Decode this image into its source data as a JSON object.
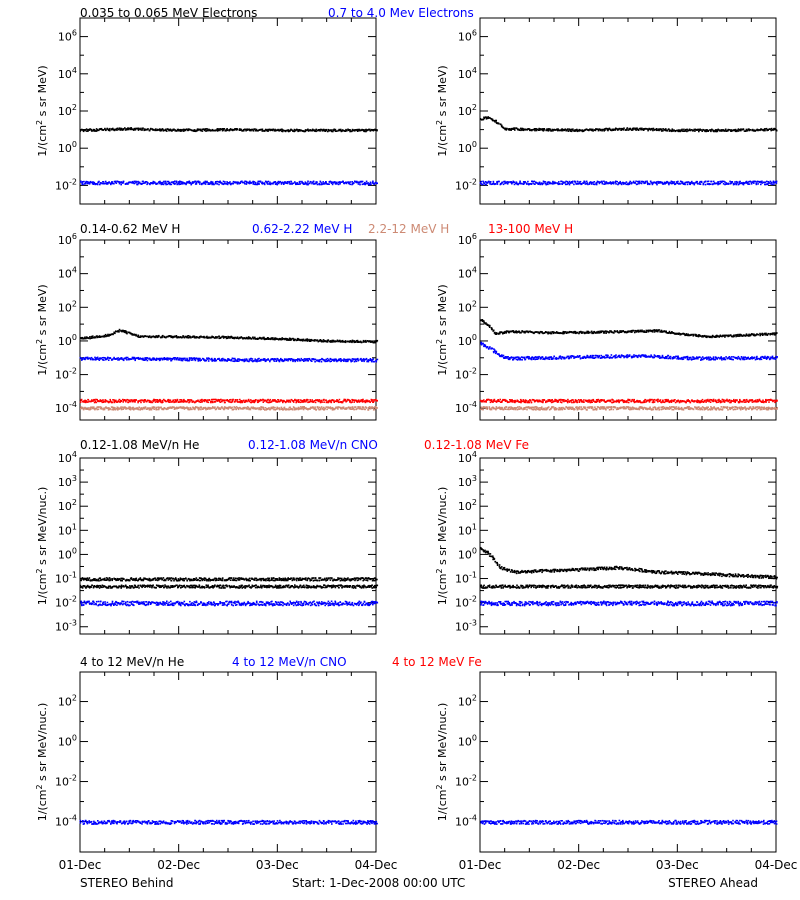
{
  "footer": {
    "left": "STEREO Behind",
    "center": "Start:  1-Dec-2008 00:00 UTC",
    "right": "STEREO Ahead"
  },
  "colors": {
    "black": "#000000",
    "blue": "#0000ff",
    "red": "#ff0000",
    "salmon": "#cd8a74"
  },
  "chart_data": [
    {
      "type": "scatter",
      "log_y": true,
      "ylim": [
        0.001,
        10000000
      ],
      "yticks": [
        "10^-2",
        "10^0",
        "10^2",
        "10^4",
        "10^6"
      ],
      "ylabel": "1/(cm^2 s sr MeV)",
      "xlim": [
        0,
        3
      ],
      "xticks": [
        "01-Dec",
        "02-Dec",
        "03-Dec",
        "04-Dec"
      ],
      "headers": [
        {
          "text": "0.035 to 0.065 MeV Electrons",
          "color": "#000000"
        },
        {
          "text": "0.7 to 4.0 Mev Electrons",
          "color": "#0000ff"
        }
      ],
      "series": [
        {
          "color": "#000000",
          "points": [
            [
              0,
              10
            ],
            [
              0.5,
              12
            ],
            [
              1,
              10
            ],
            [
              1.5,
              11
            ],
            [
              2,
              10
            ],
            [
              2.5,
              10
            ],
            [
              3,
              10
            ]
          ]
        },
        {
          "color": "#0000ff",
          "points": [
            [
              0,
              0.015
            ],
            [
              1,
              0.015
            ],
            [
              2,
              0.015
            ],
            [
              3,
              0.015
            ]
          ]
        }
      ]
    },
    {
      "type": "scatter",
      "log_y": true,
      "ylim": [
        0.001,
        10000000
      ],
      "yticks": [
        "10^-2",
        "10^0",
        "10^2",
        "10^4",
        "10^6"
      ],
      "ylabel": "1/(cm^2 s sr MeV)",
      "xlim": [
        0,
        3
      ],
      "xticks": [
        "01-Dec",
        "02-Dec",
        "03-Dec",
        "04-Dec"
      ],
      "series": [
        {
          "color": "#000000",
          "points": [
            [
              0,
              40
            ],
            [
              0.08,
              50
            ],
            [
              0.15,
              30
            ],
            [
              0.25,
              12
            ],
            [
              1,
              10
            ],
            [
              1.5,
              12
            ],
            [
              2,
              10
            ],
            [
              2.5,
              10
            ],
            [
              3,
              11
            ]
          ]
        },
        {
          "color": "#0000ff",
          "points": [
            [
              0,
              0.015
            ],
            [
              1,
              0.015
            ],
            [
              2,
              0.015
            ],
            [
              3,
              0.015
            ]
          ]
        }
      ]
    },
    {
      "type": "scatter",
      "log_y": true,
      "ylim": [
        2e-05,
        1000000
      ],
      "yticks": [
        "10^-4",
        "10^-2",
        "10^0",
        "10^2",
        "10^4",
        "10^6"
      ],
      "ylabel": "1/(cm^2 s sr MeV)",
      "xlim": [
        0,
        3
      ],
      "xticks": [
        "01-Dec",
        "02-Dec",
        "03-Dec",
        "04-Dec"
      ],
      "headers": [
        {
          "text": "0.14-0.62 MeV H",
          "color": "#000000"
        },
        {
          "text": "0.62-2.22 MeV H",
          "color": "#0000ff"
        },
        {
          "text": "2.2-12 MeV H",
          "color": "#cd8a74"
        },
        {
          "text": "13-100 MeV H",
          "color": "#ff0000"
        }
      ],
      "series": [
        {
          "color": "#000000",
          "points": [
            [
              0,
              1.5
            ],
            [
              0.3,
              2.5
            ],
            [
              0.4,
              5
            ],
            [
              0.5,
              3
            ],
            [
              0.6,
              2
            ],
            [
              1,
              2
            ],
            [
              1.5,
              1.8
            ],
            [
              2,
              1.5
            ],
            [
              2.5,
              1.1
            ],
            [
              3,
              1
            ]
          ]
        },
        {
          "color": "#0000ff",
          "points": [
            [
              0,
              0.1
            ],
            [
              1,
              0.09
            ],
            [
              2,
              0.08
            ],
            [
              3,
              0.08
            ]
          ]
        },
        {
          "color": "#ff0000",
          "points": [
            [
              0,
              0.0003
            ],
            [
              1,
              0.0003
            ],
            [
              2,
              0.0003
            ],
            [
              3,
              0.0003
            ]
          ]
        },
        {
          "color": "#cd8a74",
          "points": [
            [
              0,
              0.00011
            ],
            [
              1,
              0.00011
            ],
            [
              2,
              0.00011
            ],
            [
              3,
              0.00011
            ]
          ]
        }
      ]
    },
    {
      "type": "scatter",
      "log_y": true,
      "ylim": [
        2e-05,
        1000000
      ],
      "yticks": [
        "10^-4",
        "10^-2",
        "10^0",
        "10^2",
        "10^4",
        "10^6"
      ],
      "ylabel": "1/(cm^2 s sr MeV)",
      "xlim": [
        0,
        3
      ],
      "xticks": [
        "01-Dec",
        "02-Dec",
        "03-Dec",
        "04-Dec"
      ],
      "series": [
        {
          "color": "#000000",
          "points": [
            [
              0,
              20
            ],
            [
              0.08,
              10
            ],
            [
              0.15,
              3
            ],
            [
              0.3,
              4
            ],
            [
              0.6,
              3.5
            ],
            [
              1,
              3.5
            ],
            [
              1.5,
              4
            ],
            [
              1.8,
              4.5
            ],
            [
              2,
              3
            ],
            [
              2.3,
              2
            ],
            [
              2.5,
              2.2
            ],
            [
              3,
              3
            ]
          ]
        },
        {
          "color": "#0000ff",
          "points": [
            [
              0,
              0.8
            ],
            [
              0.1,
              0.4
            ],
            [
              0.2,
              0.15
            ],
            [
              0.3,
              0.1
            ],
            [
              1,
              0.12
            ],
            [
              1.5,
              0.14
            ],
            [
              1.8,
              0.13
            ],
            [
              2.2,
              0.1
            ],
            [
              3,
              0.11
            ]
          ]
        },
        {
          "color": "#ff0000",
          "points": [
            [
              0,
              0.0003
            ],
            [
              1,
              0.0003
            ],
            [
              2,
              0.0003
            ],
            [
              3,
              0.0003
            ]
          ]
        },
        {
          "color": "#cd8a74",
          "points": [
            [
              0,
              0.00011
            ],
            [
              1,
              0.00011
            ],
            [
              2,
              0.00011
            ],
            [
              3,
              0.00011
            ]
          ]
        }
      ]
    },
    {
      "type": "scatter",
      "log_y": true,
      "ylim": [
        0.0005,
        10000
      ],
      "yticks": [
        "10^-3",
        "10^-2",
        "10^-1",
        "10^0",
        "10^1",
        "10^2",
        "10^3",
        "10^4"
      ],
      "ylabel": "1/(cm^2 s sr MeV/nuc.)",
      "xlim": [
        0,
        3
      ],
      "xticks": [
        "01-Dec",
        "02-Dec",
        "03-Dec",
        "04-Dec"
      ],
      "headers": [
        {
          "text": "0.12-1.08 MeV/n He",
          "color": "#000000"
        },
        {
          "text": "0.12-1.08 MeV/n CNO",
          "color": "#0000ff"
        },
        {
          "text": "0.12-1.08 MeV Fe",
          "color": "#ff0000"
        }
      ],
      "series": [
        {
          "color": "#000000",
          "points": [
            [
              0,
              0.05
            ],
            [
              1,
              0.05
            ],
            [
              2,
              0.05
            ],
            [
              3,
              0.05
            ]
          ]
        },
        {
          "color": "#000000",
          "points": [
            [
              0,
              0.1
            ],
            [
              1,
              0.1
            ],
            [
              2,
              0.1
            ],
            [
              3,
              0.1
            ]
          ]
        },
        {
          "color": "#0000ff",
          "points": [
            [
              0,
              0.01
            ],
            [
              1,
              0.01
            ],
            [
              2,
              0.01
            ],
            [
              3,
              0.01
            ]
          ]
        }
      ]
    },
    {
      "type": "scatter",
      "log_y": true,
      "ylim": [
        0.0005,
        10000
      ],
      "yticks": [
        "10^-3",
        "10^-2",
        "10^-1",
        "10^0",
        "10^1",
        "10^2",
        "10^3",
        "10^4"
      ],
      "ylabel": "1/(cm^2 s sr MeV/nuc.)",
      "xlim": [
        0,
        3
      ],
      "xticks": [
        "01-Dec",
        "02-Dec",
        "03-Dec",
        "04-Dec"
      ],
      "series": [
        {
          "color": "#000000",
          "points": [
            [
              0,
              2
            ],
            [
              0.1,
              1
            ],
            [
              0.2,
              0.3
            ],
            [
              0.35,
              0.2
            ],
            [
              1,
              0.25
            ],
            [
              1.4,
              0.3
            ],
            [
              1.8,
              0.2
            ],
            [
              2.5,
              0.15
            ],
            [
              3,
              0.12
            ]
          ]
        },
        {
          "color": "#000000",
          "points": [
            [
              0,
              0.05
            ],
            [
              1,
              0.05
            ],
            [
              2,
              0.05
            ],
            [
              3,
              0.05
            ]
          ]
        },
        {
          "color": "#0000ff",
          "points": [
            [
              0,
              0.01
            ],
            [
              1,
              0.01
            ],
            [
              2,
              0.01
            ],
            [
              3,
              0.01
            ]
          ]
        }
      ]
    },
    {
      "type": "scatter",
      "log_y": true,
      "ylim": [
        3e-06,
        3000
      ],
      "yticks": [
        "10^-4",
        "10^-2",
        "10^0",
        "10^2"
      ],
      "ylabel": "1/(cm^2 s sr MeV/nuc.)",
      "xlim": [
        0,
        3
      ],
      "xticks": [
        "01-Dec",
        "02-Dec",
        "03-Dec",
        "04-Dec"
      ],
      "headers": [
        {
          "text": "4 to 12 MeV/n He",
          "color": "#000000"
        },
        {
          "text": "4 to 12 MeV/n CNO",
          "color": "#0000ff"
        },
        {
          "text": "4 to 12 MeV Fe",
          "color": "#ff0000"
        }
      ],
      "series": [
        {
          "color": "#0000ff",
          "points": [
            [
              0,
              0.0001
            ],
            [
              1,
              0.0001
            ],
            [
              2,
              0.0001
            ],
            [
              3,
              0.0001
            ]
          ]
        }
      ]
    },
    {
      "type": "scatter",
      "log_y": true,
      "ylim": [
        3e-06,
        3000
      ],
      "yticks": [
        "10^-4",
        "10^-2",
        "10^0",
        "10^2"
      ],
      "ylabel": "1/(cm^2 s sr MeV/nuc.)",
      "xlim": [
        0,
        3
      ],
      "xticks": [
        "01-Dec",
        "02-Dec",
        "03-Dec",
        "04-Dec"
      ],
      "series": [
        {
          "color": "#0000ff",
          "points": [
            [
              0,
              0.0001
            ],
            [
              1,
              0.0001
            ],
            [
              2,
              0.0001
            ],
            [
              3,
              0.0001
            ]
          ]
        }
      ]
    }
  ]
}
